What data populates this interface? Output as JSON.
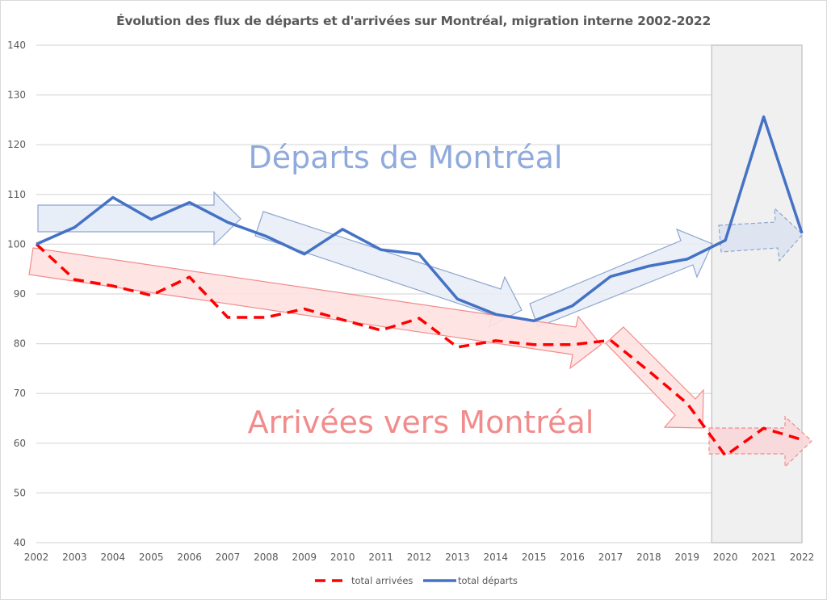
{
  "chart_data": {
    "type": "line",
    "title": "Évolution des flux de départs et d'arrivées sur Montréal, migration interne 2002-2022",
    "xlabel": "",
    "ylabel": "",
    "x": [
      "2002",
      "2003",
      "2004",
      "2005",
      "2006",
      "2007",
      "2008",
      "2009",
      "2010",
      "2011",
      "2012",
      "2013",
      "2014",
      "2015",
      "2016",
      "2017",
      "2018",
      "2019",
      "2020",
      "2021",
      "2022"
    ],
    "ylim": [
      40,
      140
    ],
    "yticks": [
      "40",
      "50",
      "60",
      "70",
      "80",
      "90",
      "100",
      "110",
      "120",
      "130",
      "140"
    ],
    "grid": true,
    "legend_position": "bottom",
    "highlight_range": [
      "2020",
      "2022"
    ],
    "series": [
      {
        "name": "total arrivées",
        "style": "dashed",
        "color": "#ff0000",
        "values": [
          100,
          92.9,
          91.6,
          89.7,
          93.4,
          85.3,
          85.3,
          87.0,
          84.8,
          82.7,
          85.1,
          79.3,
          80.6,
          79.8,
          79.8,
          80.7,
          74.5,
          68.0,
          57.5,
          63.0,
          60.7
        ]
      },
      {
        "name": "total départs",
        "style": "solid",
        "color": "#4472c4",
        "values": [
          100,
          103.4,
          109.4,
          105.0,
          108.4,
          104.4,
          101.6,
          98.0,
          103.0,
          98.9,
          98.0,
          89.0,
          85.9,
          84.6,
          87.6,
          93.5,
          95.6,
          97.0,
          100.8,
          125.6,
          102.2
        ]
      }
    ],
    "annotations": [
      {
        "text": "Départs de Montréal",
        "color": "#8faadc"
      },
      {
        "text": "Arrivées vers Montréal",
        "color": "#f28b8b"
      }
    ]
  }
}
